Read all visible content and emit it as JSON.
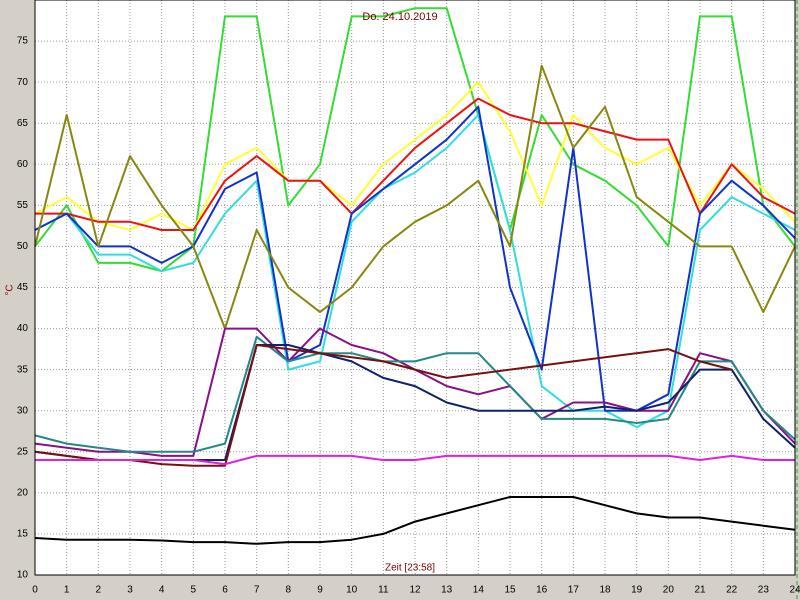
{
  "chart_data": {
    "type": "line",
    "title": "Do. 24.10.2019",
    "y_label": "°C",
    "x_label": "Zeit [23:58]",
    "xlim": [
      0,
      24
    ],
    "ylim": [
      10,
      80
    ],
    "xticks": [
      0,
      1,
      2,
      3,
      4,
      5,
      6,
      7,
      8,
      9,
      10,
      11,
      12,
      13,
      14,
      15,
      16,
      17,
      18,
      19,
      20,
      21,
      22,
      23,
      24
    ],
    "yticks": [
      10,
      15,
      20,
      25,
      30,
      35,
      40,
      45,
      50,
      55,
      60,
      65,
      70,
      75
    ],
    "grid": true,
    "x": [
      0,
      1,
      2,
      3,
      4,
      5,
      6,
      7,
      8,
      9,
      10,
      11,
      12,
      13,
      14,
      15,
      16,
      17,
      18,
      19,
      20,
      21,
      22,
      23,
      24
    ],
    "series": [
      {
        "color": "#33dd33",
        "values": [
          50,
          55,
          48,
          48,
          47,
          50,
          78,
          78,
          55,
          60,
          78,
          78,
          79,
          79,
          66,
          52,
          66,
          60,
          58,
          55,
          50,
          78,
          78,
          55,
          50
        ]
      },
      {
        "color": "#ffff33",
        "values": [
          54,
          56,
          53,
          52,
          54,
          52,
          60,
          62,
          58,
          58,
          55,
          60,
          63,
          66,
          70,
          64,
          55,
          66,
          62,
          60,
          62,
          55,
          60,
          57,
          53
        ]
      },
      {
        "color": "#ee1111",
        "values": [
          54,
          54,
          53,
          53,
          52,
          52,
          58,
          61,
          58,
          58,
          54,
          58,
          62,
          65,
          68,
          66,
          65,
          65,
          64,
          63,
          63,
          54,
          60,
          56,
          54
        ]
      },
      {
        "color": "#33dddd",
        "values": [
          52,
          54,
          49,
          49,
          47,
          48,
          54,
          58,
          35,
          36,
          53,
          57,
          59,
          62,
          66,
          52,
          33,
          30,
          30,
          28,
          30,
          52,
          56,
          54,
          52
        ]
      },
      {
        "color": "#1133cc",
        "values": [
          52,
          54,
          50,
          50,
          48,
          50,
          57,
          59,
          36,
          38,
          54,
          57,
          60,
          63,
          67,
          45,
          35,
          62,
          30,
          30,
          32,
          54,
          58,
          55,
          51
        ]
      },
      {
        "color": "#888811",
        "values": [
          50,
          66,
          50,
          61,
          55,
          50,
          40,
          52,
          45,
          42,
          45,
          50,
          53,
          55,
          58,
          50,
          72,
          62,
          67,
          56,
          53,
          50,
          50,
          42,
          50
        ]
      },
      {
        "color": "#881188",
        "values": [
          26,
          25.5,
          25,
          25,
          24.5,
          24.5,
          40,
          40,
          36,
          40,
          38,
          37,
          35,
          33,
          32,
          33,
          29,
          31,
          31,
          30,
          30,
          37,
          36,
          30,
          26
        ]
      },
      {
        "color": "#228888",
        "values": [
          27,
          26,
          25.5,
          25,
          25,
          25,
          26,
          39,
          36,
          37,
          37,
          36,
          36,
          37,
          37,
          33,
          29,
          29,
          29,
          28.5,
          29,
          36,
          36,
          30,
          26.5
        ]
      },
      {
        "color": "#112266",
        "values": [
          25,
          24.5,
          24,
          24,
          24,
          24,
          24,
          38,
          38,
          37,
          36,
          34,
          33,
          31,
          30,
          30,
          30,
          30,
          30.5,
          30,
          31,
          35,
          35,
          29,
          25.5
        ]
      },
      {
        "color": "#771111",
        "values": [
          25,
          24.5,
          24,
          24,
          23.5,
          23.3,
          23.3,
          38,
          37.5,
          37,
          36.5,
          36,
          35,
          34,
          34.5,
          35,
          35.5,
          36,
          36.5,
          37,
          37.5,
          36,
          35,
          null,
          null
        ]
      },
      {
        "color": "#dd22dd",
        "values": [
          24,
          24,
          24,
          24,
          24,
          24,
          23.5,
          24.5,
          24.5,
          24.5,
          24.5,
          24,
          24,
          24.5,
          24.5,
          24.5,
          24.5,
          24.5,
          24.5,
          24.5,
          24.5,
          24,
          24.5,
          24,
          24
        ]
      },
      {
        "color": "#000000",
        "values": [
          14.5,
          14.3,
          14.3,
          14.3,
          14.2,
          14,
          14,
          13.8,
          14,
          14,
          14.3,
          15,
          16.5,
          17.5,
          18.5,
          19.5,
          19.5,
          19.5,
          18.5,
          17.5,
          17,
          17,
          16.5,
          16,
          15.5
        ]
      }
    ]
  }
}
